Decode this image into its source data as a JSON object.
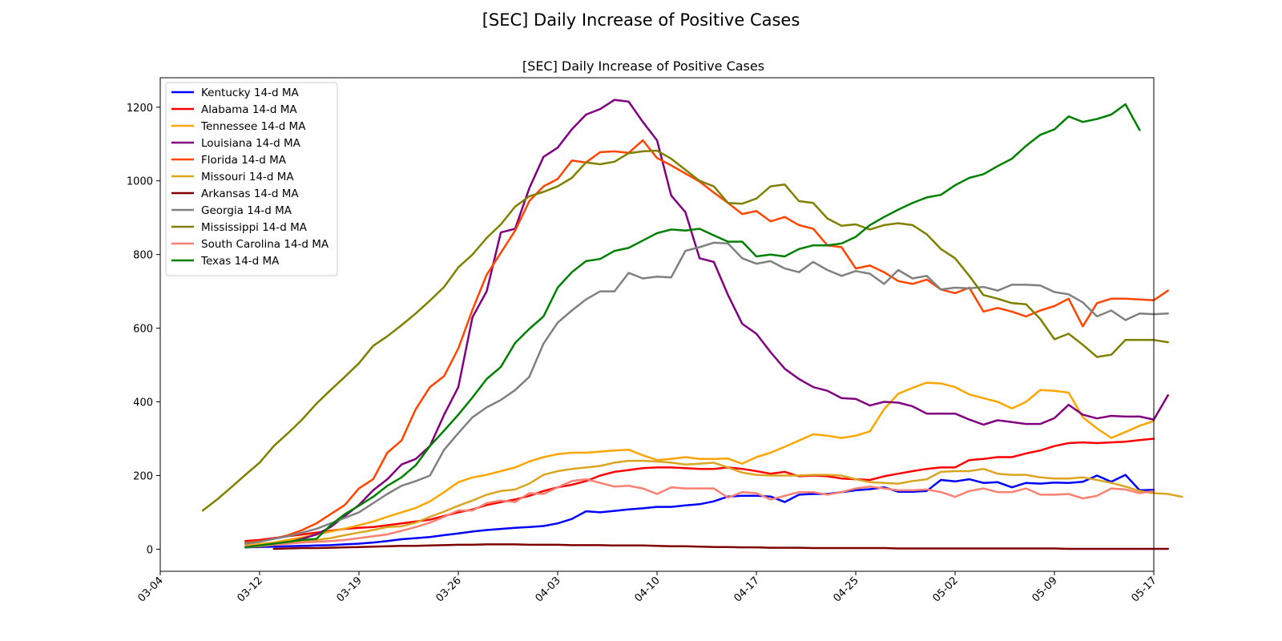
{
  "chart_data": {
    "type": "line",
    "suptitle": "[SEC] Daily Increase of Positive Cases",
    "title": "[SEC] Daily Increase of Positive Cases",
    "xlabel": "",
    "ylabel": "",
    "x_ticks": [
      "03-04",
      "03-12",
      "03-19",
      "03-26",
      "04-03",
      "04-10",
      "04-17",
      "04-25",
      "05-02",
      "05-09",
      "05-17"
    ],
    "xlim": [
      0,
      70
    ],
    "ylim": [
      -60,
      1280
    ],
    "y_ticks": [
      0,
      200,
      400,
      600,
      800,
      1000,
      1200
    ],
    "grid": false,
    "legend_position": "top-left",
    "series": [
      {
        "name": "Kentucky 14-d MA",
        "color": "#0000ff",
        "x_start": 6,
        "values": [
          5,
          6,
          7,
          8,
          9,
          10,
          11,
          13,
          15,
          18,
          22,
          27,
          30,
          33,
          38,
          43,
          48,
          52,
          55,
          58,
          60,
          63,
          70,
          82,
          103,
          100,
          104,
          108,
          111,
          115,
          115,
          119,
          122,
          130,
          143,
          145,
          145,
          143,
          128,
          148,
          150,
          150,
          155,
          160,
          163,
          168,
          156,
          156,
          158,
          188,
          184,
          190,
          180,
          182,
          168,
          180,
          178,
          181,
          180,
          183,
          200,
          183,
          202,
          160,
          161
        ]
      },
      {
        "name": "Alabama 14-d MA",
        "color": "#ff0000",
        "x_start": 6,
        "values": [
          22,
          25,
          30,
          35,
          40,
          45,
          50,
          55,
          58,
          60,
          65,
          70,
          75,
          80,
          90,
          100,
          108,
          120,
          128,
          135,
          145,
          158,
          168,
          175,
          185,
          200,
          210,
          215,
          220,
          222,
          222,
          220,
          218,
          218,
          222,
          218,
          212,
          205,
          210,
          198,
          200,
          198,
          192,
          190,
          188,
          198,
          205,
          212,
          218,
          222,
          222,
          242,
          245,
          250,
          250,
          260,
          268,
          280,
          288,
          290,
          288,
          290,
          292,
          296,
          300
        ]
      },
      {
        "name": "Tennessee 14-d MA",
        "color": "#ffa500",
        "x_start": 6,
        "values": [
          10,
          14,
          18,
          25,
          32,
          40,
          48,
          56,
          65,
          75,
          88,
          100,
          112,
          130,
          155,
          182,
          195,
          202,
          212,
          222,
          238,
          250,
          258,
          262,
          262,
          265,
          268,
          270,
          255,
          242,
          245,
          250,
          245,
          245,
          246,
          232,
          250,
          262,
          278,
          295,
          312,
          308,
          302,
          308,
          320,
          380,
          422,
          438,
          452,
          450,
          440,
          420,
          410,
          400,
          382,
          400,
          432,
          430,
          425,
          358,
          328,
          302,
          318,
          335,
          348
        ]
      },
      {
        "name": "Louisiana 14-d MA",
        "color": "#800080",
        "x_start": 7,
        "values": [
          8,
          12,
          18,
          28,
          40,
          60,
          90,
          120,
          160,
          190,
          230,
          245,
          280,
          365,
          440,
          630,
          700,
          860,
          870,
          980,
          1065,
          1090,
          1140,
          1180,
          1195,
          1220,
          1215,
          1160,
          1110,
          960,
          915,
          790,
          780,
          690,
          612,
          585,
          535,
          490,
          462,
          440,
          430,
          410,
          408,
          390,
          400,
          398,
          388,
          368,
          368,
          368,
          352,
          338,
          350,
          345,
          340,
          340,
          356,
          392,
          365,
          355,
          362,
          360,
          360,
          352,
          418
        ]
      },
      {
        "name": "Florida 14-d MA",
        "color": "#ff4500",
        "x_start": 6,
        "values": [
          18,
          22,
          28,
          38,
          52,
          70,
          95,
          120,
          165,
          190,
          262,
          295,
          380,
          440,
          470,
          545,
          650,
          745,
          805,
          865,
          945,
          985,
          1005,
          1055,
          1050,
          1078,
          1080,
          1076,
          1110,
          1062,
          1042,
          1020,
          998,
          968,
          940,
          910,
          918,
          890,
          902,
          880,
          870,
          825,
          820,
          762,
          770,
          752,
          728,
          720,
          732,
          705,
          695,
          710,
          645,
          655,
          645,
          632,
          648,
          660,
          680,
          605,
          668,
          680,
          680,
          678,
          676,
          702
        ]
      },
      {
        "name": "Missouri 14-d MA",
        "color": "#daa520",
        "x_start": 6,
        "values": [
          5,
          8,
          12,
          16,
          20,
          25,
          30,
          38,
          45,
          52,
          60,
          62,
          72,
          88,
          102,
          118,
          132,
          148,
          158,
          162,
          178,
          202,
          212,
          218,
          222,
          226,
          235,
          240,
          240,
          238,
          235,
          230,
          232,
          235,
          222,
          208,
          202,
          200,
          200,
          200,
          202,
          202,
          200,
          190,
          182,
          180,
          178,
          185,
          190,
          210,
          212,
          212,
          218,
          205,
          202,
          202,
          195,
          192,
          192,
          195,
          188,
          180,
          170,
          158,
          152,
          150,
          142
        ]
      },
      {
        "name": "Arkansas 14-d MA",
        "color": "#800000",
        "x_start": 8,
        "values": [
          1,
          2,
          3,
          3,
          4,
          5,
          6,
          7,
          8,
          9,
          9,
          10,
          11,
          12,
          12,
          13,
          13,
          13,
          12,
          12,
          12,
          11,
          11,
          11,
          10,
          10,
          10,
          9,
          8,
          8,
          7,
          6,
          6,
          5,
          5,
          4,
          4,
          4,
          3,
          3,
          3,
          3,
          3,
          3,
          2,
          2,
          2,
          2,
          2,
          2,
          2,
          2,
          2,
          2,
          2,
          2,
          1,
          1,
          1,
          1,
          1,
          1,
          1,
          1
        ]
      },
      {
        "name": "Georgia 14-d MA",
        "color": "#808080",
        "x_start": 6,
        "values": [
          15,
          20,
          28,
          35,
          45,
          55,
          70,
          85,
          100,
          125,
          150,
          172,
          185,
          200,
          270,
          315,
          358,
          385,
          405,
          432,
          468,
          558,
          615,
          648,
          678,
          700,
          700,
          750,
          735,
          740,
          738,
          810,
          820,
          832,
          830,
          790,
          775,
          782,
          762,
          752,
          780,
          758,
          742,
          755,
          748,
          720,
          758,
          735,
          742,
          705,
          710,
          708,
          712,
          702,
          718,
          718,
          716,
          698,
          692,
          670,
          632,
          648,
          622,
          640,
          638,
          640
        ]
      },
      {
        "name": "Mississippi 14-d MA",
        "color": "#808000",
        "x_start": 3,
        "values": [
          105,
          135,
          168,
          202,
          235,
          280,
          315,
          352,
          395,
          432,
          468,
          505,
          552,
          578,
          608,
          640,
          675,
          712,
          765,
          800,
          845,
          882,
          930,
          958,
          970,
          985,
          1008,
          1050,
          1045,
          1052,
          1075,
          1080,
          1082,
          1060,
          1030,
          1000,
          985,
          940,
          938,
          952,
          985,
          990,
          945,
          940,
          898,
          878,
          882,
          868,
          880,
          885,
          880,
          855,
          815,
          790,
          742,
          690,
          680,
          668,
          665,
          625,
          570,
          585,
          555,
          522,
          528,
          568,
          568,
          568,
          562
        ]
      },
      {
        "name": "South Carolina 14-d MA",
        "color": "#fa8072",
        "x_start": 6,
        "values": [
          8,
          10,
          12,
          15,
          18,
          20,
          22,
          25,
          30,
          35,
          40,
          50,
          60,
          72,
          88,
          105,
          105,
          125,
          132,
          128,
          152,
          150,
          168,
          185,
          190,
          180,
          170,
          172,
          165,
          150,
          168,
          165,
          165,
          165,
          140,
          155,
          152,
          135,
          145,
          155,
          155,
          148,
          155,
          165,
          170,
          165,
          160,
          160,
          162,
          155,
          142,
          158,
          165,
          155,
          155,
          165,
          148,
          148,
          150,
          138,
          145,
          165,
          162,
          152,
          158
        ]
      },
      {
        "name": "Texas 14-d MA",
        "color": "#008000",
        "x_start": 6,
        "values": [
          5,
          10,
          15,
          20,
          25,
          28,
          65,
          95,
          118,
          142,
          172,
          195,
          228,
          280,
          322,
          365,
          412,
          462,
          495,
          560,
          598,
          632,
          710,
          752,
          782,
          788,
          810,
          818,
          838,
          858,
          868,
          865,
          870,
          852,
          835,
          835,
          795,
          800,
          795,
          815,
          825,
          825,
          830,
          848,
          880,
          902,
          922,
          940,
          955,
          962,
          988,
          1008,
          1018,
          1040,
          1060,
          1095,
          1125,
          1140,
          1175,
          1160,
          1168,
          1180,
          1208,
          1138
        ]
      }
    ]
  }
}
